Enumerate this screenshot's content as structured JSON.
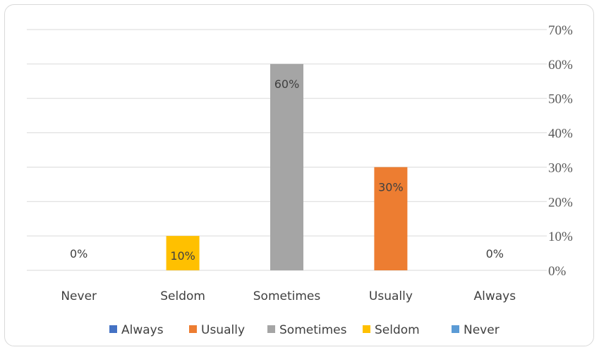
{
  "chart_data": {
    "type": "bar",
    "categories": [
      "Never",
      "Seldom",
      "Sometimes",
      "Usually",
      "Always"
    ],
    "values": [
      0,
      10,
      60,
      30,
      0
    ],
    "data_labels": [
      "0%",
      "10%",
      "60%",
      "30%",
      "0%"
    ],
    "bar_colors": [
      "#5b9bd5",
      "#ffc000",
      "#a5a5a5",
      "#ed7d31",
      "#4472c4"
    ],
    "ylim": [
      0,
      70
    ],
    "y_ticks": [
      0,
      10,
      20,
      30,
      40,
      50,
      60,
      70
    ],
    "y_tick_labels": [
      "0%",
      "10%",
      "20%",
      "30%",
      "40%",
      "50%",
      "60%",
      "70%"
    ],
    "y_axis_side": "right",
    "grid": true,
    "legend_position": "bottom",
    "legend": [
      {
        "name": "Always",
        "color": "#4472c4"
      },
      {
        "name": "Usually",
        "color": "#ed7d31"
      },
      {
        "name": "Sometimes",
        "color": "#a5a5a5"
      },
      {
        "name": "Seldom",
        "color": "#ffc000"
      },
      {
        "name": "Never",
        "color": "#5b9bd5"
      }
    ]
  }
}
